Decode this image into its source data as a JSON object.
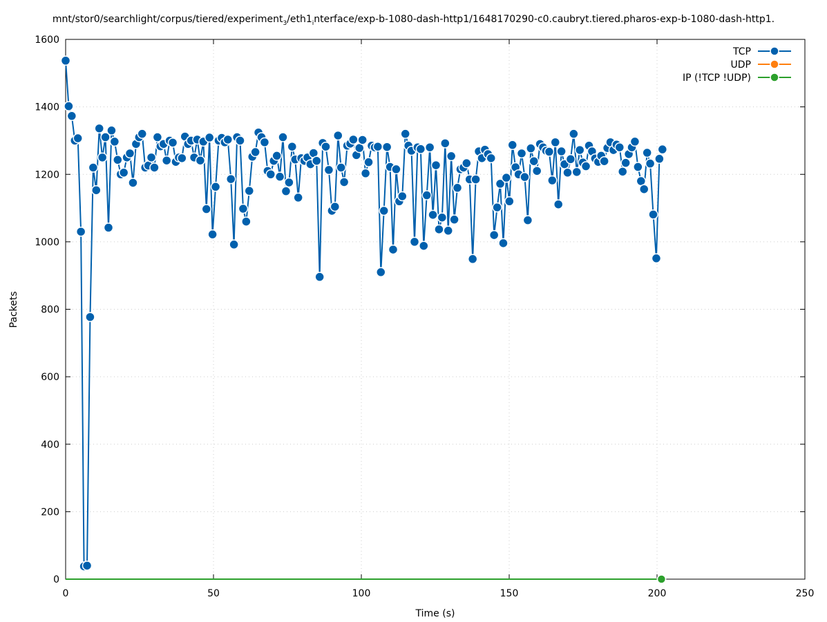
{
  "title_parts": [
    "mnt/stor0/searchlight/corpus/tiered/experiment",
    "3",
    "/eth1",
    "i",
    "nterface/exp-b-1080-dash-http1/1648170290-c0.caubryt.tiered.pharos-exp-b-1080-dash-http1."
  ],
  "chart_data": {
    "type": "line",
    "title": "mnt/stor0/searchlight/corpus/tiered/experiment_3/eth1_interface/exp-b-1080-dash-http1/1648170290-c0.caubryt.tiered.pharos-exp-b-1080-dash-http1.",
    "xlabel": "Time (s)",
    "ylabel": "Packets",
    "xlim": [
      0,
      250
    ],
    "ylim": [
      0,
      1600
    ],
    "xticks": [
      "0",
      "50",
      "100",
      "150",
      "200",
      "250"
    ],
    "yticks": [
      "0",
      "200",
      "400",
      "600",
      "800",
      "1000",
      "1200",
      "1400",
      "1600"
    ],
    "grid": true,
    "legend_position": "top-right",
    "x_start": 0,
    "x_step": 1.035,
    "series": [
      {
        "name": "TCP",
        "color": "#0060ad",
        "values": [
          1537,
          1402,
          1373,
          1300,
          1307,
          1030,
          38,
          40,
          777,
          1220,
          1153,
          1336,
          1250,
          1310,
          1042,
          1330,
          1297,
          1243,
          1200,
          1205,
          1250,
          1262,
          1175,
          1290,
          1310,
          1320,
          1220,
          1226,
          1250,
          1220,
          1310,
          1283,
          1290,
          1241,
          1300,
          1294,
          1237,
          1250,
          1248,
          1312,
          1290,
          1300,
          1250,
          1303,
          1241,
          1297,
          1097,
          1309,
          1022,
          1163,
          1300,
          1308,
          1295,
          1303,
          1186,
          992,
          1310,
          1300,
          1098,
          1060,
          1151,
          1252,
          1266,
          1324,
          1310,
          1295,
          1210,
          1200,
          1240,
          1255,
          1193,
          1310,
          1150,
          1176,
          1282,
          1244,
          1131,
          1248,
          1240,
          1250,
          1230,
          1263,
          1240,
          896,
          1293,
          1282,
          1213,
          1092,
          1104,
          1315,
          1220,
          1177,
          1285,
          1291,
          1303,
          1257,
          1278,
          1302,
          1203,
          1236,
          1285,
          1280,
          1282,
          910,
          1092,
          1281,
          1222,
          977,
          1215,
          1120,
          1135,
          1320,
          1285,
          1270,
          1000,
          1280,
          1275,
          988,
          1138,
          1280,
          1080,
          1227,
          1037,
          1072,
          1292,
          1033,
          1254,
          1066,
          1160,
          1215,
          1220,
          1233,
          1185,
          949,
          1185,
          1268,
          1248,
          1273,
          1260,
          1248,
          1020,
          1102,
          1172,
          996,
          1190,
          1120,
          1287,
          1221,
          1200,
          1262,
          1192,
          1064,
          1277,
          1239,
          1210,
          1290,
          1280,
          1270,
          1267,
          1182,
          1295,
          1111,
          1268,
          1230,
          1205,
          1245,
          1320,
          1207,
          1272,
          1235,
          1224,
          1285,
          1268,
          1247,
          1237,
          1255,
          1239,
          1278,
          1295,
          1272,
          1288,
          1280,
          1208,
          1234,
          1260,
          1280,
          1297,
          1222,
          1180,
          1156,
          1264,
          1232,
          1081,
          951,
          1246,
          1274
        ]
      },
      {
        "name": "UDP",
        "color": "#ff7f0e",
        "points": [
          [
            201.5,
            0
          ]
        ]
      },
      {
        "name": "IP (!TCP  !UDP)",
        "color": "#2ca02c",
        "points": [
          [
            201.5,
            0
          ]
        ]
      }
    ]
  }
}
